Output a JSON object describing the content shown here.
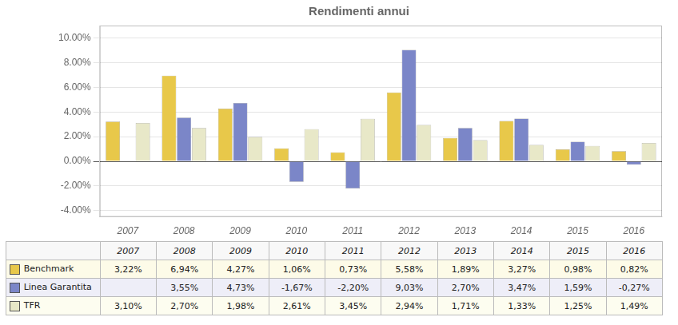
{
  "chart_data": {
    "type": "bar",
    "title": "Rendimenti annui",
    "categories": [
      "2007",
      "2008",
      "2009",
      "2010",
      "2011",
      "2012",
      "2013",
      "2014",
      "2015",
      "2016"
    ],
    "series": [
      {
        "name": "Benchmark",
        "color": "#E8C84A",
        "values": [
          3.22,
          6.94,
          4.27,
          1.06,
          0.73,
          5.58,
          1.89,
          3.27,
          0.98,
          0.82
        ],
        "value_labels": [
          "3,22%",
          "6,94%",
          "4,27%",
          "1,06%",
          "0,73%",
          "5,58%",
          "1,89%",
          "3,27%",
          "0,98%",
          "0,82%"
        ]
      },
      {
        "name": "Linea Garantita",
        "color": "#7B86C8",
        "values": [
          null,
          3.55,
          4.73,
          -1.67,
          -2.2,
          9.03,
          2.7,
          3.47,
          1.59,
          -0.27
        ],
        "value_labels": [
          null,
          "3,55%",
          "4,73%",
          "-1,67%",
          "-2,20%",
          "9,03%",
          "2,70%",
          "3,47%",
          "1,59%",
          "-0,27%"
        ]
      },
      {
        "name": "TFR",
        "color": "#E8E8C8",
        "values": [
          3.1,
          2.7,
          1.98,
          2.61,
          3.45,
          2.94,
          1.71,
          1.33,
          1.25,
          1.49
        ],
        "value_labels": [
          "3,10%",
          "2,70%",
          "1,98%",
          "2,61%",
          "3,45%",
          "2,94%",
          "1,71%",
          "1,33%",
          "1,25%",
          "1,49%"
        ]
      }
    ],
    "ylim": [
      -4.5,
      11.0
    ],
    "yticks": [
      {
        "value": -4.0,
        "label": "-4.00%"
      },
      {
        "value": -2.0,
        "label": "-2.00%"
      },
      {
        "value": 0.0,
        "label": "0.00%"
      },
      {
        "value": 2.0,
        "label": "2.00%"
      },
      {
        "value": 4.0,
        "label": "4.00%"
      },
      {
        "value": 6.0,
        "label": "6.00%"
      },
      {
        "value": 8.0,
        "label": "8.00%"
      },
      {
        "value": 10.0,
        "label": "10.00%"
      }
    ],
    "grid": true,
    "legend": "bottom"
  }
}
